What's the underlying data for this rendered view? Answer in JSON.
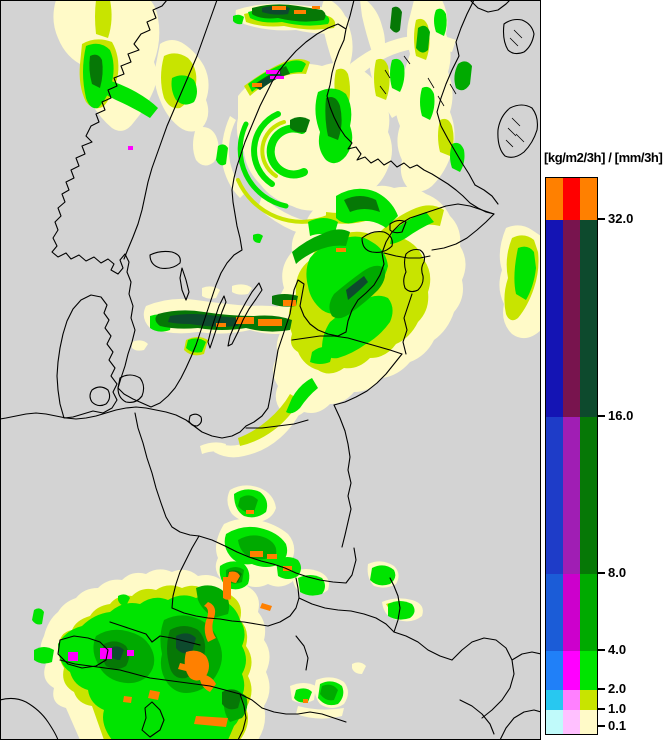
{
  "figure": {
    "page_background": "#ffffff",
    "map_background": "#d3d3d3",
    "outline_color": "#000000"
  },
  "legend": {
    "title": "[kg/m2/3h] / [mm/3h]",
    "tick_labels": [
      "32.0",
      "16.0",
      "8.0",
      "4.0",
      "2.0",
      "1.0",
      "0.1"
    ],
    "bands": [
      {
        "range": "above 32.0",
        "colors": [
          "#ff8000",
          "#ff0000",
          "#ff8000"
        ]
      },
      {
        "range": "16.0 to 32.0",
        "colors": [
          "#1414b4",
          "#78144e",
          "#0d4a2d"
        ]
      },
      {
        "range": "8.0 to 16.0",
        "colors": [
          "#1e3cc8",
          "#a01eb4",
          "#067806"
        ]
      },
      {
        "range": "4.0 to 8.0",
        "colors": [
          "#1b5cd7",
          "#cc00cc",
          "#00aa00"
        ]
      },
      {
        "range": "2.0 to 4.0",
        "colors": [
          "#2080f8",
          "#ff00ff",
          "#00e400"
        ]
      },
      {
        "range": "1.0 to 2.0",
        "colors": [
          "#28c8f0",
          "#ff80ff",
          "#c8e400"
        ]
      },
      {
        "range": "0.1 to 1.0",
        "colors": [
          "#c0fafa",
          "#ffc0ff",
          "#fffac8"
        ]
      }
    ]
  },
  "map_palette": {
    "trace": "#fffac8",
    "light": "#c8e400",
    "moderate": "#00e400",
    "heavy": "#00aa00",
    "veryheavy": "#067806",
    "extreme": "#0d4a2d",
    "intense": "#ff8000",
    "mixed": "#ff00ff"
  }
}
